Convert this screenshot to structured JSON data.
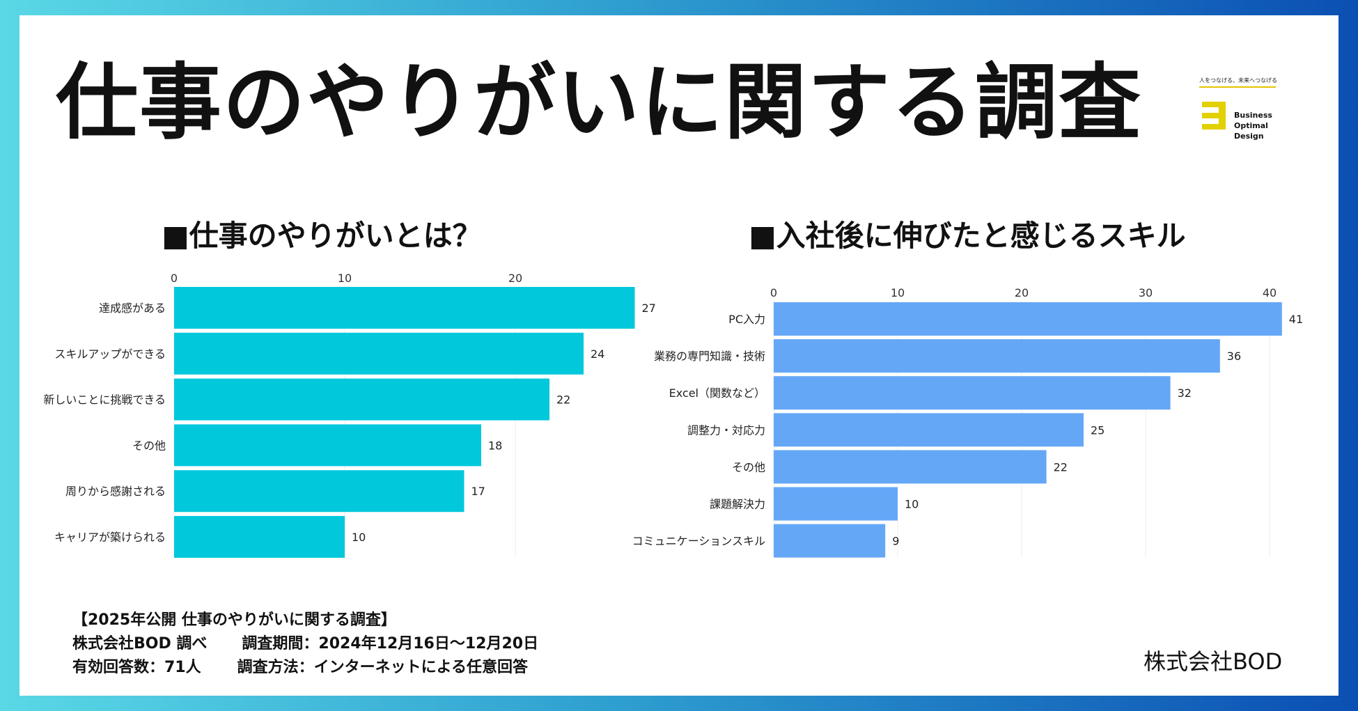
{
  "page": {
    "title": "仕事のやりがいに関する調査",
    "company": "株式会社BOD",
    "colors": {
      "left_bar": "#02c8dc",
      "right_bar": "#64a7f7"
    }
  },
  "logo": {
    "tagline": "人をつなげる、未来へつなげる",
    "words": [
      "Business",
      "Optimal",
      "Design"
    ]
  },
  "notes": {
    "line1": "【2025年公開 仕事のやりがいに関する調査】",
    "line2a": "株式会社BOD 調べ",
    "line2b": "調査期間：2024年12月16日〜12月20日",
    "line3a": "有効回答数：71人",
    "line3b": "調査方法：インターネットによる任意回答"
  },
  "chart_data": [
    {
      "type": "bar",
      "orientation": "horizontal",
      "title": "■仕事のやりがいとは？",
      "categories": [
        "達成感がある",
        "スキルアップができる",
        "新しいことに挑戦できる",
        "その他",
        "周りから感謝される",
        "キャリアが築けられる"
      ],
      "values": [
        27,
        24,
        22,
        18,
        17,
        10
      ],
      "xticks": [
        0,
        10,
        20
      ],
      "xlim": [
        0,
        28
      ],
      "grid": true,
      "xlabel": "",
      "ylabel": ""
    },
    {
      "type": "bar",
      "orientation": "horizontal",
      "title": "■入社後に伸びたと感じるスキル",
      "categories": [
        "PC入力",
        "業務の専門知識・技術",
        "Excel（関数など）",
        "調整力・対応力",
        "その他",
        "課題解決力",
        "コミュニケーションスキル"
      ],
      "values": [
        41,
        36,
        32,
        25,
        22,
        10,
        9
      ],
      "xticks": [
        0,
        10,
        20,
        30,
        40
      ],
      "xlim": [
        0,
        42
      ],
      "grid": true,
      "xlabel": "",
      "ylabel": ""
    }
  ]
}
